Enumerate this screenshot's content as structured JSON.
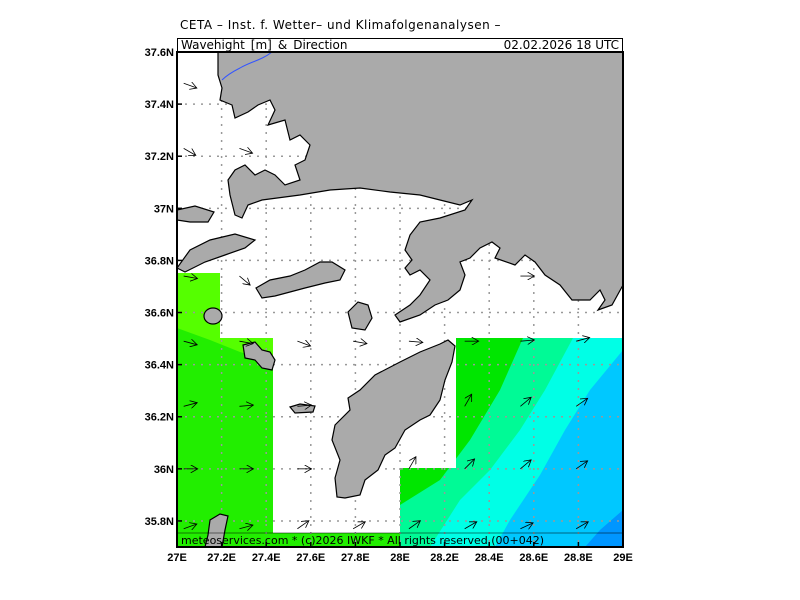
{
  "header": {
    "institute": "CETA – Inst. f. Wetter– und Klimafolgenanalysen –",
    "title": "Wavehight_[m]_&_Direction",
    "datetime": "02.02.2026 18 UTC"
  },
  "credit": "meteoservices.com * (c)2026 IWKF * All rights reserved (00+042)",
  "axes": {
    "lon_ticks": [
      "27E",
      "27.2E",
      "27.4E",
      "27.6E",
      "27.8E",
      "28E",
      "28.2E",
      "28.4E",
      "28.6E",
      "28.8E",
      "29E"
    ],
    "lat_ticks": [
      "37.6N",
      "37.4N",
      "37.2N",
      "37N",
      "36.8N",
      "36.6N",
      "36.4N",
      "36.2N",
      "36N",
      "35.8N"
    ],
    "lon_range": [
      27,
      29
    ],
    "lat_range": [
      35.7,
      37.6
    ]
  },
  "colors": {
    "land": "#aaaaaa",
    "wave_classes": [
      "#55ff00",
      "#22ee00",
      "#00e600",
      "#00fa96",
      "#00ffe6",
      "#00c8ff",
      "#0096ff"
    ]
  },
  "arrows": [
    [
      27.03,
      37.48,
      -20
    ],
    [
      27.03,
      37.23,
      -30
    ],
    [
      27.28,
      37.23,
      -20
    ],
    [
      27.03,
      36.74,
      -10
    ],
    [
      27.28,
      36.74,
      -40
    ],
    [
      28.54,
      36.74,
      0
    ],
    [
      27.03,
      36.49,
      -15
    ],
    [
      27.28,
      36.49,
      -10
    ],
    [
      27.54,
      36.49,
      -20
    ],
    [
      27.79,
      36.49,
      -10
    ],
    [
      28.04,
      36.49,
      -5
    ],
    [
      28.29,
      36.49,
      0
    ],
    [
      28.54,
      36.49,
      5
    ],
    [
      28.79,
      36.49,
      15
    ],
    [
      27.03,
      36.24,
      15
    ],
    [
      27.28,
      36.24,
      5
    ],
    [
      27.54,
      36.24,
      5
    ],
    [
      28.29,
      36.24,
      60
    ],
    [
      28.54,
      36.24,
      40
    ],
    [
      28.79,
      36.24,
      35
    ],
    [
      27.03,
      36.0,
      0
    ],
    [
      27.28,
      36.0,
      0
    ],
    [
      27.54,
      36.0,
      0
    ],
    [
      28.04,
      36.0,
      60
    ],
    [
      28.29,
      36.0,
      45
    ],
    [
      28.54,
      36.0,
      40
    ],
    [
      28.79,
      36.0,
      35
    ],
    [
      27.03,
      35.77,
      20
    ],
    [
      27.28,
      35.77,
      15
    ],
    [
      27.54,
      35.77,
      35
    ],
    [
      27.79,
      35.77,
      30
    ],
    [
      28.04,
      35.77,
      35
    ],
    [
      28.29,
      35.77,
      30
    ],
    [
      28.54,
      35.77,
      25
    ],
    [
      28.79,
      35.77,
      30
    ]
  ]
}
